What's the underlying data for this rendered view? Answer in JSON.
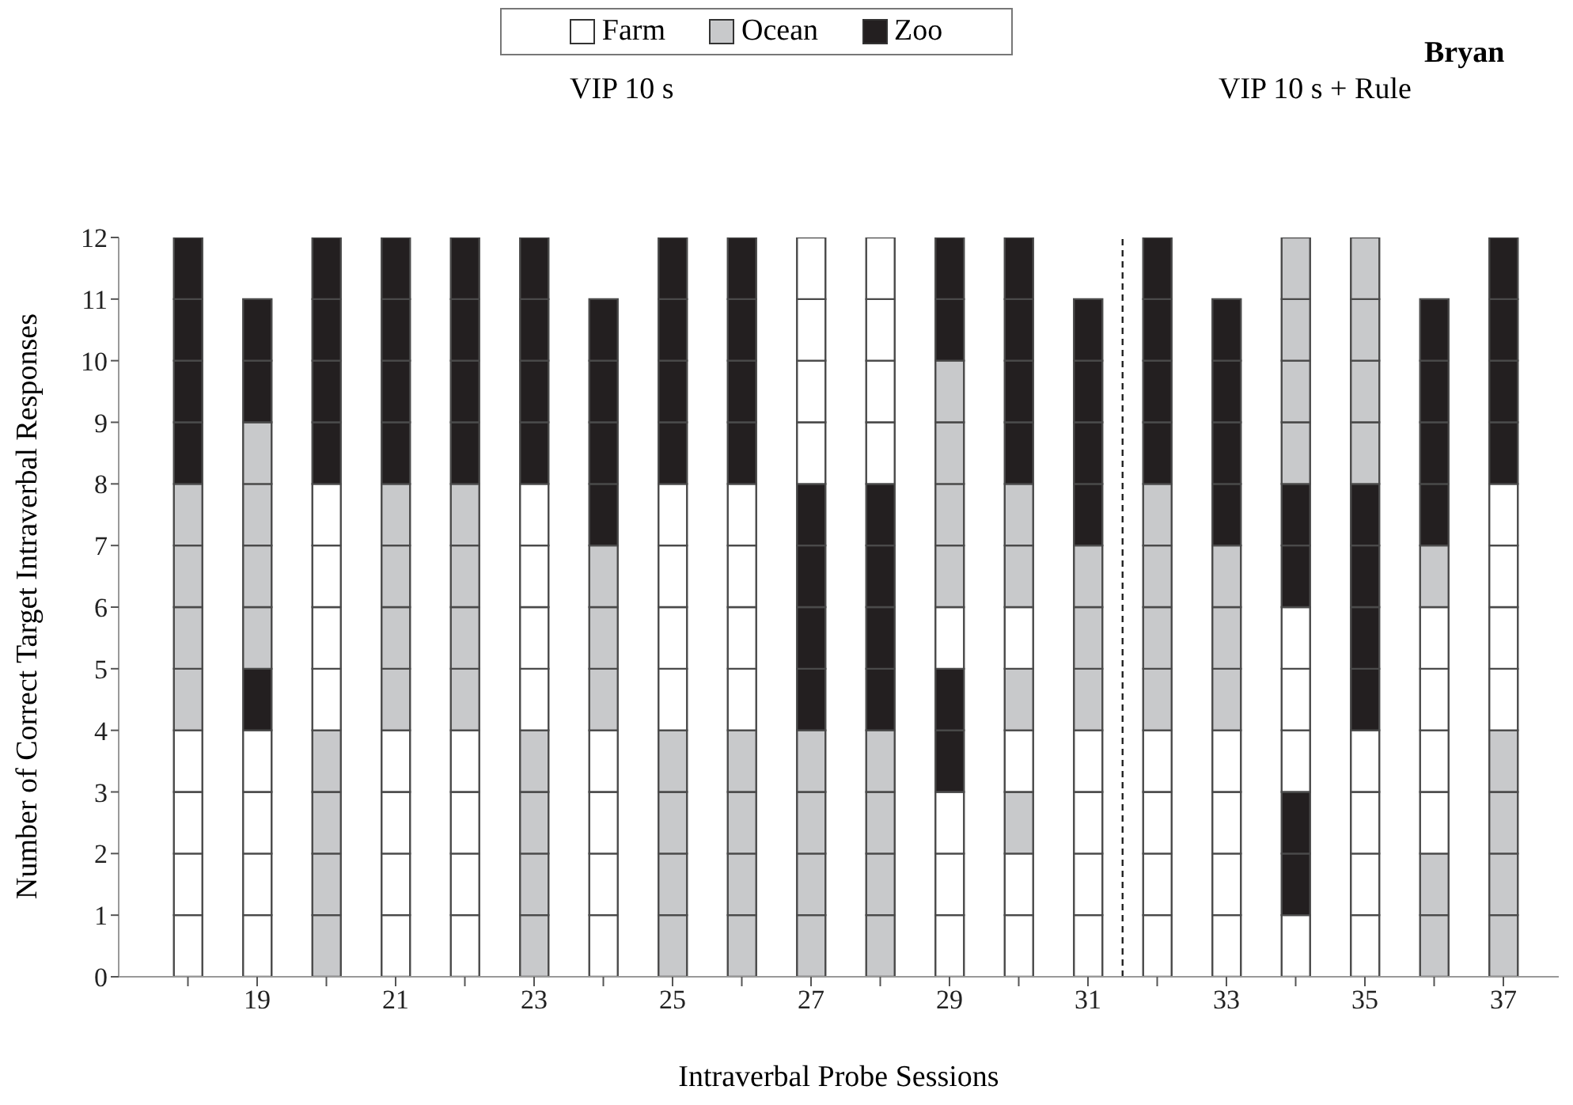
{
  "chart_data": {
    "type": "bar",
    "stacked": true,
    "xlabel": "Intraverbal Probe Sessions",
    "ylabel": "Number of Correct Target Intraverbal Responses",
    "annotations": [
      "VIP 10 s",
      "VIP 10 s + Rule",
      "Bryan"
    ],
    "x": [
      18,
      19,
      20,
      21,
      22,
      23,
      24,
      25,
      26,
      27,
      28,
      29,
      30,
      31,
      32,
      33,
      34,
      35,
      36,
      37
    ],
    "xlim": [
      17,
      37.8
    ],
    "xticks": [
      {
        "value": 18,
        "label": null
      },
      19,
      {
        "value": 20,
        "label": null
      },
      21,
      {
        "value": 22,
        "label": null
      },
      23,
      {
        "value": 24,
        "label": null
      },
      25,
      {
        "value": 26,
        "label": null
      },
      27,
      {
        "value": 28,
        "label": null
      },
      29,
      {
        "value": 30,
        "label": null
      },
      31,
      {
        "value": 32,
        "label": null
      },
      33,
      {
        "value": 34,
        "label": null
      },
      35,
      {
        "value": 36,
        "label": null
      },
      37
    ],
    "ylim": [
      0,
      12
    ],
    "yticks": [
      0,
      1,
      2,
      3,
      4,
      5,
      6,
      7,
      8,
      9,
      10,
      11,
      12
    ],
    "grid": false,
    "legend": "top",
    "ref_lines": [
      {
        "axis": "x",
        "value": 31.5,
        "line_style": "dashed"
      }
    ],
    "series": [
      {
        "name": "Farm",
        "color": "#ffffff",
        "values": [
          null,
          null,
          null,
          null,
          null,
          null,
          null,
          null,
          null,
          null,
          null,
          null,
          null,
          null,
          null,
          null,
          null,
          null,
          null,
          null
        ]
      },
      {
        "name": "Ocean",
        "color": "#c8c9cb",
        "values": [
          null,
          null,
          null,
          null,
          null,
          null,
          null,
          null,
          null,
          null,
          null,
          null,
          null,
          null,
          null,
          null,
          null,
          null,
          null,
          null
        ]
      },
      {
        "name": "Zoo",
        "color": "#231f20",
        "values": [
          null,
          null,
          null,
          null,
          null,
          null,
          null,
          null,
          null,
          null,
          null,
          null,
          null,
          null,
          null,
          null,
          null,
          null,
          null,
          null
        ]
      },
      {
        "values": [
          1,
          1,
          1,
          1,
          1,
          1,
          1,
          1,
          1,
          1,
          1,
          1,
          1,
          1,
          1,
          1,
          1,
          1,
          1,
          1
        ],
        "colors": [
          "#ffffff",
          "#ffffff",
          "#c8c9cb",
          "#ffffff",
          "#ffffff",
          "#c8c9cb",
          "#ffffff",
          "#c8c9cb",
          "#c8c9cb",
          "#c8c9cb",
          "#c8c9cb",
          "#ffffff",
          "#ffffff",
          "#ffffff",
          "#ffffff",
          "#ffffff",
          "#ffffff",
          "#ffffff",
          "#c8c9cb",
          "#c8c9cb"
        ]
      },
      {
        "values": [
          1,
          1,
          1,
          1,
          1,
          1,
          1,
          1,
          1,
          1,
          1,
          1,
          1,
          1,
          1,
          1,
          1,
          1,
          1,
          1
        ],
        "colors": [
          "#ffffff",
          "#ffffff",
          "#c8c9cb",
          "#ffffff",
          "#ffffff",
          "#c8c9cb",
          "#ffffff",
          "#c8c9cb",
          "#c8c9cb",
          "#c8c9cb",
          "#c8c9cb",
          "#ffffff",
          "#ffffff",
          "#ffffff",
          "#ffffff",
          "#ffffff",
          "#231f20",
          "#ffffff",
          "#c8c9cb",
          "#c8c9cb"
        ]
      },
      {
        "values": [
          1,
          1,
          1,
          1,
          1,
          1,
          1,
          1,
          1,
          1,
          1,
          1,
          1,
          1,
          1,
          1,
          1,
          1,
          1,
          1
        ],
        "colors": [
          "#ffffff",
          "#ffffff",
          "#c8c9cb",
          "#ffffff",
          "#ffffff",
          "#c8c9cb",
          "#ffffff",
          "#c8c9cb",
          "#c8c9cb",
          "#c8c9cb",
          "#c8c9cb",
          "#ffffff",
          "#c8c9cb",
          "#ffffff",
          "#ffffff",
          "#ffffff",
          "#231f20",
          "#ffffff",
          "#ffffff",
          "#c8c9cb"
        ]
      },
      {
        "values": [
          1,
          1,
          1,
          1,
          1,
          1,
          1,
          1,
          1,
          1,
          1,
          1,
          1,
          1,
          1,
          1,
          1,
          1,
          1,
          1
        ],
        "colors": [
          "#ffffff",
          "#ffffff",
          "#c8c9cb",
          "#ffffff",
          "#ffffff",
          "#c8c9cb",
          "#ffffff",
          "#c8c9cb",
          "#c8c9cb",
          "#c8c9cb",
          "#c8c9cb",
          "#231f20",
          "#ffffff",
          "#ffffff",
          "#ffffff",
          "#ffffff",
          "#ffffff",
          "#ffffff",
          "#ffffff",
          "#c8c9cb"
        ]
      },
      {
        "values": [
          1,
          1,
          1,
          1,
          1,
          1,
          1,
          1,
          1,
          1,
          1,
          1,
          1,
          1,
          1,
          1,
          1,
          1,
          1,
          1
        ],
        "colors": [
          "#c8c9cb",
          "#231f20",
          "#ffffff",
          "#c8c9cb",
          "#c8c9cb",
          "#ffffff",
          "#c8c9cb",
          "#ffffff",
          "#ffffff",
          "#231f20",
          "#231f20",
          "#231f20",
          "#c8c9cb",
          "#c8c9cb",
          "#c8c9cb",
          "#c8c9cb",
          "#ffffff",
          "#231f20",
          "#ffffff",
          "#ffffff"
        ]
      },
      {
        "values": [
          1,
          1,
          1,
          1,
          1,
          1,
          1,
          1,
          1,
          1,
          1,
          1,
          1,
          1,
          1,
          1,
          1,
          1,
          1,
          1
        ],
        "colors": [
          "#c8c9cb",
          "#c8c9cb",
          "#ffffff",
          "#c8c9cb",
          "#c8c9cb",
          "#ffffff",
          "#c8c9cb",
          "#ffffff",
          "#ffffff",
          "#231f20",
          "#231f20",
          "#ffffff",
          "#ffffff",
          "#c8c9cb",
          "#c8c9cb",
          "#c8c9cb",
          "#ffffff",
          "#231f20",
          "#ffffff",
          "#ffffff"
        ]
      },
      {
        "values": [
          1,
          1,
          1,
          1,
          1,
          1,
          1,
          1,
          1,
          1,
          1,
          1,
          1,
          1,
          1,
          1,
          1,
          1,
          1,
          1
        ],
        "colors": [
          "#c8c9cb",
          "#c8c9cb",
          "#ffffff",
          "#c8c9cb",
          "#c8c9cb",
          "#ffffff",
          "#c8c9cb",
          "#ffffff",
          "#ffffff",
          "#231f20",
          "#231f20",
          "#c8c9cb",
          "#c8c9cb",
          "#c8c9cb",
          "#c8c9cb",
          "#c8c9cb",
          "#231f20",
          "#231f20",
          "#c8c9cb",
          "#ffffff"
        ]
      },
      {
        "values": [
          1,
          1,
          1,
          1,
          1,
          1,
          1,
          1,
          1,
          1,
          1,
          1,
          1,
          1,
          1,
          1,
          1,
          1,
          1,
          1
        ],
        "colors": [
          "#c8c9cb",
          "#c8c9cb",
          "#ffffff",
          "#c8c9cb",
          "#c8c9cb",
          "#ffffff",
          "#231f20",
          "#ffffff",
          "#ffffff",
          "#231f20",
          "#231f20",
          "#c8c9cb",
          "#c8c9cb",
          "#231f20",
          "#c8c9cb",
          "#231f20",
          "#231f20",
          "#231f20",
          "#231f20",
          "#ffffff"
        ]
      },
      {
        "values": [
          1,
          1,
          1,
          1,
          1,
          1,
          1,
          1,
          1,
          1,
          1,
          1,
          1,
          1,
          1,
          1,
          1,
          1,
          1,
          1
        ],
        "colors": [
          "#231f20",
          "#c8c9cb",
          "#231f20",
          "#231f20",
          "#231f20",
          "#231f20",
          "#231f20",
          "#231f20",
          "#231f20",
          "#ffffff",
          "#ffffff",
          "#c8c9cb",
          "#231f20",
          "#231f20",
          "#231f20",
          "#231f20",
          "#c8c9cb",
          "#c8c9cb",
          "#231f20",
          "#231f20"
        ]
      },
      {
        "values": [
          1,
          1,
          1,
          1,
          1,
          1,
          1,
          1,
          1,
          1,
          1,
          1,
          1,
          1,
          1,
          1,
          1,
          1,
          1,
          1
        ],
        "colors": [
          "#231f20",
          "#231f20",
          "#231f20",
          "#231f20",
          "#231f20",
          "#231f20",
          "#231f20",
          "#231f20",
          "#231f20",
          "#ffffff",
          "#ffffff",
          "#c8c9cb",
          "#231f20",
          "#231f20",
          "#231f20",
          "#231f20",
          "#c8c9cb",
          "#c8c9cb",
          "#231f20",
          "#231f20"
        ]
      },
      {
        "values": [
          1,
          1,
          1,
          1,
          1,
          1,
          1,
          1,
          1,
          1,
          1,
          1,
          1,
          1,
          1,
          1,
          1,
          1,
          1,
          1
        ],
        "colors": [
          "#231f20",
          "#231f20",
          "#231f20",
          "#231f20",
          "#231f20",
          "#231f20",
          "#231f20",
          "#231f20",
          "#231f20",
          "#ffffff",
          "#ffffff",
          "#231f20",
          "#231f20",
          "#231f20",
          "#231f20",
          "#231f20",
          "#c8c9cb",
          "#c8c9cb",
          "#231f20",
          "#231f20"
        ]
      },
      {
        "values": [
          1,
          null,
          1,
          1,
          1,
          1,
          null,
          1,
          1,
          1,
          1,
          1,
          1,
          null,
          1,
          null,
          1,
          1,
          null,
          1
        ],
        "colors": [
          "#231f20",
          null,
          "#231f20",
          "#231f20",
          "#231f20",
          "#231f20",
          null,
          "#231f20",
          "#231f20",
          "#ffffff",
          "#ffffff",
          "#231f20",
          "#231f20",
          null,
          "#231f20",
          null,
          "#c8c9cb",
          "#c8c9cb",
          null,
          "#231f20"
        ]
      }
    ]
  }
}
